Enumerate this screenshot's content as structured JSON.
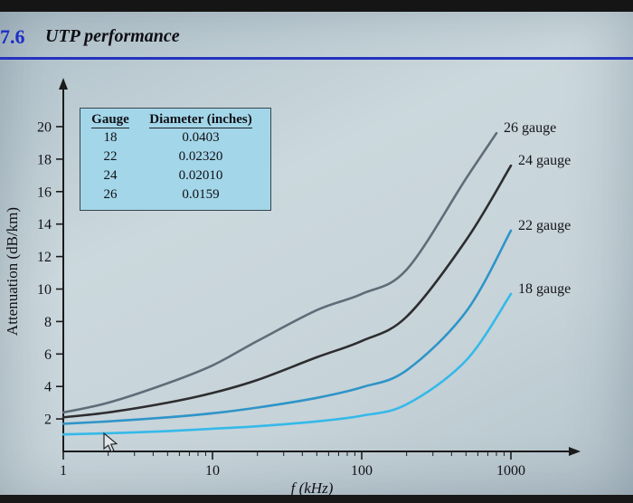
{
  "header": {
    "section_number": "7.6",
    "section_title": "UTP performance"
  },
  "table": {
    "headers": [
      "Gauge",
      "Diameter (inches)"
    ],
    "rows": [
      [
        "18",
        "0.0403"
      ],
      [
        "22",
        "0.02320"
      ],
      [
        "24",
        "0.02010"
      ],
      [
        "26",
        "0.0159"
      ]
    ]
  },
  "colors": {
    "header_accent": "#2333c0",
    "table_background": "#a3d6e8",
    "axis": "#1b1b1b",
    "paper": "#c6d3d9"
  },
  "chart_data": {
    "type": "line",
    "title": "UTP performance",
    "xlabel": "f (kHz)",
    "ylabel": "Attenuation (dB/km)",
    "xscale": "log",
    "xlim": [
      1,
      1000
    ],
    "ylim": [
      0,
      21.5
    ],
    "xticks": [
      1,
      10,
      100,
      1000
    ],
    "yticks": [
      2,
      4,
      6,
      8,
      10,
      12,
      14,
      16,
      18,
      20
    ],
    "grid": false,
    "legend_position": "curve-end-labels",
    "series": [
      {
        "name": "26 gauge",
        "color": "#5f6d79",
        "x": [
          1,
          2,
          5,
          10,
          20,
          50,
          100,
          200,
          500,
          800
        ],
        "values": [
          2.4,
          3.0,
          4.2,
          5.3,
          6.8,
          8.7,
          9.7,
          11.2,
          16.8,
          19.6
        ]
      },
      {
        "name": "24 gauge",
        "color": "#2d2d2f",
        "x": [
          1,
          2,
          5,
          10,
          20,
          50,
          100,
          200,
          500,
          1000
        ],
        "values": [
          2.1,
          2.4,
          3.0,
          3.6,
          4.4,
          5.8,
          6.8,
          8.3,
          13.0,
          17.6
        ]
      },
      {
        "name": "22 gauge",
        "color": "#2f94c8",
        "x": [
          1,
          2,
          5,
          10,
          20,
          50,
          100,
          200,
          500,
          1000
        ],
        "values": [
          1.7,
          1.85,
          2.1,
          2.35,
          2.7,
          3.3,
          3.95,
          5.0,
          8.6,
          13.6
        ]
      },
      {
        "name": "18 gauge",
        "color": "#35b9e9",
        "x": [
          1,
          2,
          5,
          10,
          20,
          50,
          100,
          200,
          500,
          1000
        ],
        "values": [
          1.05,
          1.12,
          1.25,
          1.4,
          1.55,
          1.85,
          2.2,
          2.9,
          5.6,
          9.7
        ]
      }
    ]
  }
}
